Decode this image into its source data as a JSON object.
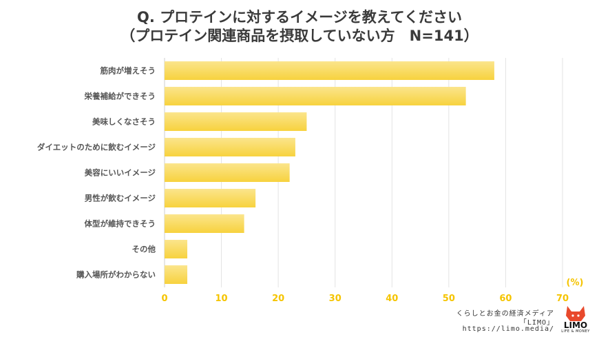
{
  "title_line1": "Q. プロテインに対するイメージを教えてください",
  "title_line2": "（プロテイン関連商品を摂取していない方　N=141）",
  "chart_data": {
    "type": "bar",
    "orientation": "horizontal",
    "title": "Q. プロテインに対するイメージを教えてください（プロテイン関連商品を摂取していない方　N=141）",
    "categories": [
      "筋肉が増えそう",
      "栄養補給ができそう",
      "美味しくなさそう",
      "ダイエットのために飲むイメージ",
      "美容にいいイメージ",
      "男性が飲むイメージ",
      "体型が維持できそう",
      "その他",
      "購入場所がわからない"
    ],
    "values": [
      58,
      53,
      25,
      23,
      22,
      16,
      14,
      4,
      4
    ],
    "xlim": [
      0,
      70
    ],
    "xticks": [
      "0",
      "10",
      "20",
      "30",
      "40",
      "50",
      "60",
      "70"
    ],
    "unit_label": "(%)",
    "bar_color": "#f7d23e",
    "bar_color_light": "#fbe58c",
    "tick_color": "#f5c400",
    "grid": true
  },
  "credit": {
    "site": "くらしとお金の経済メディア",
    "brand": "「LIMO」",
    "url": "https://limo.media/"
  },
  "logo": {
    "name": "LIMO",
    "tagline": "LIFE & MONEY",
    "color": "#e8492c"
  }
}
